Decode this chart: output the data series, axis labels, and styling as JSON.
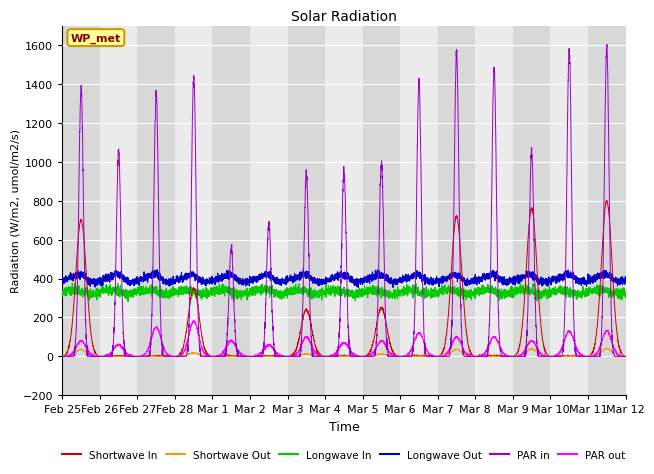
{
  "title": "Solar Radiation",
  "xlabel": "Time",
  "ylabel": "Radiation (W/m2, umol/m2/s)",
  "ylim": [
    -200,
    1700
  ],
  "xtick_labels": [
    "Feb 25",
    "Feb 26",
    "Feb 27",
    "Feb 28",
    "Mar 1",
    "Mar 2",
    "Mar 3",
    "Mar 4",
    "Mar 5",
    "Mar 6",
    "Mar 7",
    "Mar 8",
    "Mar 9",
    "Mar 10",
    "Mar 11",
    "Mar 12"
  ],
  "legend_labels": [
    "Shortwave In",
    "Shortwave Out",
    "Longwave In",
    "Longwave Out",
    "PAR in",
    "PAR out"
  ],
  "legend_colors": [
    "#cc0000",
    "#ff9900",
    "#00cc00",
    "#0000cc",
    "#9900cc",
    "#ff00ff"
  ],
  "bg_stripe_light": "#ebebeb",
  "bg_stripe_dark": "#d8d8d8",
  "annotation_text": "WP_met",
  "annotation_bg": "#ffff99",
  "annotation_border": "#cc9900",
  "annotation_text_color": "#880000",
  "sw_peaks": [
    700,
    0,
    0,
    350,
    0,
    0,
    240,
    0,
    250,
    0,
    720,
    0,
    760,
    0,
    800
  ],
  "par_peaks": [
    1380,
    1060,
    1350,
    1440,
    560,
    680,
    940,
    950,
    1000,
    1420,
    1560,
    1480,
    1060,
    1580,
    1600
  ],
  "par_out_peaks": [
    80,
    60,
    150,
    180,
    80,
    60,
    100,
    70,
    80,
    120,
    100,
    100,
    80,
    130,
    130
  ],
  "lw_in_base": 330,
  "lw_out_base": 390,
  "n_days": 15
}
